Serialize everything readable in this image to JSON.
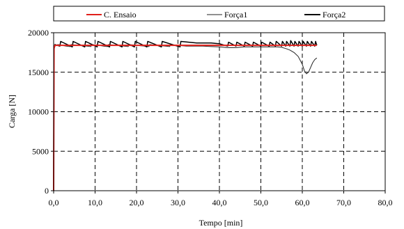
{
  "chart_data": {
    "type": "line",
    "xlabel": "Tempo [min]",
    "ylabel": "Carga [N]",
    "xlim": [
      0,
      80
    ],
    "ylim": [
      0,
      20000
    ],
    "x_ticks": [
      0,
      10,
      20,
      30,
      40,
      50,
      60,
      70,
      80
    ],
    "x_tick_labels": [
      "0,0",
      "10,0",
      "20,0",
      "30,0",
      "40,0",
      "50,0",
      "60,0",
      "70,0",
      "80,0"
    ],
    "y_ticks": [
      0,
      5000,
      10000,
      15000,
      20000
    ],
    "y_tick_labels": [
      "0",
      "5000",
      "10000",
      "15000",
      "20000"
    ],
    "grid": true,
    "legend_placement": "top",
    "colors": {
      "c_ensaio": "#e0201b",
      "forca1": "#222222",
      "forca2": "#000000"
    },
    "series": [
      {
        "name": "C. Ensaio",
        "x": [
          0,
          0.1,
          0.3,
          5,
          10,
          15,
          20,
          25,
          30,
          35,
          40,
          45,
          50,
          55,
          60,
          63.5
        ],
        "y": [
          0,
          18000,
          18400,
          18400,
          18400,
          18400,
          18400,
          18400,
          18400,
          18400,
          18400,
          18400,
          18400,
          18400,
          18400,
          18400
        ]
      },
      {
        "name": "Força1",
        "x": [
          0,
          0.1,
          0.3,
          1,
          2,
          3,
          4,
          4.2,
          6,
          8,
          9,
          9.2,
          11,
          12,
          13,
          13.2,
          15,
          17,
          18,
          18.2,
          20,
          22,
          23,
          23.2,
          25,
          27,
          28,
          28.2,
          30,
          32,
          34,
          36,
          38,
          40,
          42,
          44,
          46,
          48,
          50,
          52,
          54,
          55,
          56,
          57,
          58,
          59,
          60,
          60.5,
          61,
          61.5,
          62,
          62.5,
          63,
          63.5
        ],
        "y": [
          0,
          18000,
          18300,
          18500,
          18400,
          18300,
          18250,
          18500,
          18400,
          18300,
          18250,
          18500,
          18400,
          18300,
          18250,
          18500,
          18400,
          18300,
          18250,
          18500,
          18400,
          18300,
          18250,
          18500,
          18400,
          18300,
          18250,
          18500,
          18400,
          18300,
          18300,
          18300,
          18250,
          18200,
          18100,
          18100,
          18200,
          18200,
          18200,
          18200,
          18200,
          18150,
          18000,
          17800,
          17500,
          17000,
          16000,
          15200,
          14800,
          15000,
          15600,
          16200,
          16600,
          16800
        ]
      },
      {
        "name": "Força2",
        "x": [
          0,
          0.1,
          0.3,
          1.5,
          1.7,
          4.5,
          4.7,
          7.5,
          7.7,
          10.5,
          10.7,
          13.5,
          13.7,
          16.5,
          16.7,
          19.5,
          19.7,
          22.5,
          22.7,
          26,
          26.2,
          30.5,
          30.7,
          34.5,
          35,
          36,
          38,
          40,
          42,
          42.2,
          44,
          44.2,
          46,
          46.2,
          48,
          48.2,
          50,
          50.2,
          52,
          52.2,
          53.5,
          53.7,
          55,
          55.2,
          56,
          56.2,
          57,
          57.2,
          58,
          58.2,
          59,
          59.2,
          60,
          60.2,
          61,
          61.2,
          62,
          62.2,
          63,
          63.2,
          63.5
        ],
        "y": [
          0,
          18000,
          18500,
          18300,
          18900,
          18200,
          18900,
          18200,
          18900,
          18200,
          18900,
          18200,
          18900,
          18200,
          18900,
          18200,
          18900,
          18200,
          18900,
          18200,
          18900,
          18200,
          18900,
          18700,
          18700,
          18700,
          18700,
          18600,
          18300,
          18800,
          18300,
          18800,
          18300,
          18800,
          18300,
          18800,
          18300,
          18800,
          18300,
          18800,
          18300,
          18900,
          18300,
          18900,
          18300,
          18900,
          18300,
          19000,
          18300,
          18900,
          18300,
          18900,
          18300,
          18900,
          18300,
          18900,
          18300,
          18900,
          18300,
          18900,
          18400
        ]
      }
    ]
  }
}
